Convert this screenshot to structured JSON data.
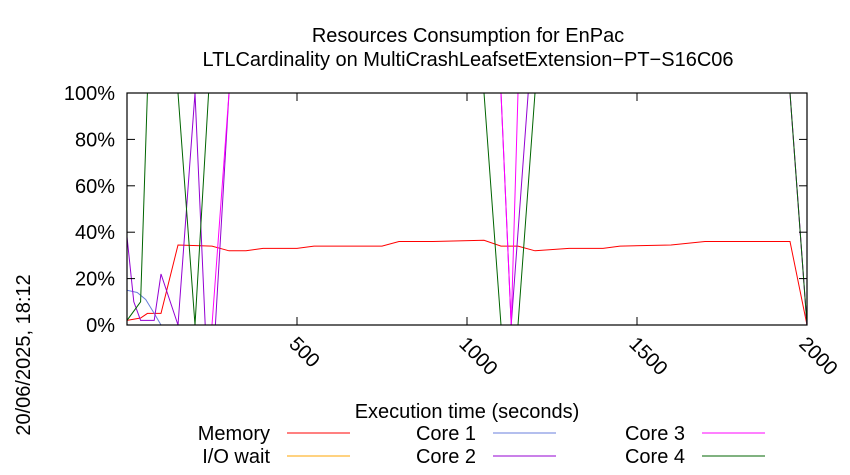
{
  "chart_data": {
    "type": "line",
    "title": "Resources Consumption for EnPac",
    "subtitle": "LTLCardinality on MultiCrashLeafsetExtension−PT−S16C06",
    "xlabel": "Execution time (seconds)",
    "ylabel": "",
    "side_label": "20/06/2025, 18:12",
    "xlim": [
      0,
      2000
    ],
    "ylim": [
      0,
      100
    ],
    "x_ticks": [
      {
        "value": 500,
        "label": "500"
      },
      {
        "value": 1000,
        "label": "1000"
      },
      {
        "value": 1500,
        "label": "1500"
      },
      {
        "value": 2000,
        "label": "2000"
      }
    ],
    "y_ticks": [
      {
        "value": 0,
        "label": "0%"
      },
      {
        "value": 20,
        "label": "20%"
      },
      {
        "value": 40,
        "label": "40%"
      },
      {
        "value": 60,
        "label": "60%"
      },
      {
        "value": 80,
        "label": "80%"
      },
      {
        "value": 100,
        "label": "100%"
      }
    ],
    "grid": false,
    "legend_position": "bottom",
    "series": [
      {
        "name": "Memory",
        "color": "#ff0000",
        "points": [
          [
            0,
            2
          ],
          [
            40,
            3
          ],
          [
            60,
            5
          ],
          [
            100,
            5
          ],
          [
            150,
            34.5
          ],
          [
            250,
            34
          ],
          [
            300,
            32
          ],
          [
            350,
            32
          ],
          [
            400,
            33
          ],
          [
            500,
            33
          ],
          [
            550,
            34
          ],
          [
            600,
            34
          ],
          [
            750,
            34
          ],
          [
            800,
            36
          ],
          [
            900,
            36
          ],
          [
            1050,
            36.5
          ],
          [
            1100,
            34
          ],
          [
            1150,
            34
          ],
          [
            1200,
            32
          ],
          [
            1300,
            33
          ],
          [
            1400,
            33
          ],
          [
            1450,
            34
          ],
          [
            1600,
            34.5
          ],
          [
            1700,
            36
          ],
          [
            1950,
            36
          ],
          [
            2000,
            0
          ]
        ]
      },
      {
        "name": "I/O wait",
        "color": "#ffa500",
        "points": [
          [
            0,
            0
          ],
          [
            60,
            0
          ],
          [
            2000,
            0
          ]
        ]
      },
      {
        "name": "Core 1",
        "color": "#6a7fdc",
        "points": [
          [
            0,
            15
          ],
          [
            30,
            14
          ],
          [
            55,
            11
          ],
          [
            80,
            5
          ],
          [
            100,
            0
          ],
          [
            150,
            0
          ],
          [
            2000,
            0
          ]
        ]
      },
      {
        "name": "Core 2",
        "color": "#9400d3",
        "points": [
          [
            0,
            38
          ],
          [
            20,
            10
          ],
          [
            40,
            2
          ],
          [
            80,
            2
          ],
          [
            100,
            22
          ],
          [
            150,
            0
          ],
          [
            200,
            100
          ],
          [
            230,
            0
          ],
          [
            260,
            0
          ],
          [
            300,
            100
          ],
          [
            1050,
            100
          ],
          [
            1100,
            100
          ],
          [
            1130,
            0
          ],
          [
            1180,
            100
          ],
          [
            1950,
            100
          ],
          [
            2000,
            0
          ]
        ]
      },
      {
        "name": "Core 3",
        "color": "#ff00ff",
        "points": [
          [
            0,
            0
          ],
          [
            60,
            0
          ],
          [
            150,
            0
          ],
          [
            200,
            0
          ],
          [
            250,
            0
          ],
          [
            300,
            100
          ],
          [
            1050,
            100
          ],
          [
            1100,
            100
          ],
          [
            1130,
            0
          ],
          [
            1150,
            100
          ],
          [
            1950,
            100
          ],
          [
            2000,
            0
          ]
        ]
      },
      {
        "name": "Core 4",
        "color": "#006400",
        "points": [
          [
            0,
            2
          ],
          [
            40,
            10
          ],
          [
            60,
            100
          ],
          [
            150,
            100
          ],
          [
            200,
            0
          ],
          [
            240,
            100
          ],
          [
            1000,
            100
          ],
          [
            1050,
            100
          ],
          [
            1100,
            0
          ],
          [
            1150,
            0
          ],
          [
            1200,
            100
          ],
          [
            1950,
            100
          ],
          [
            2000,
            0
          ]
        ]
      }
    ]
  }
}
